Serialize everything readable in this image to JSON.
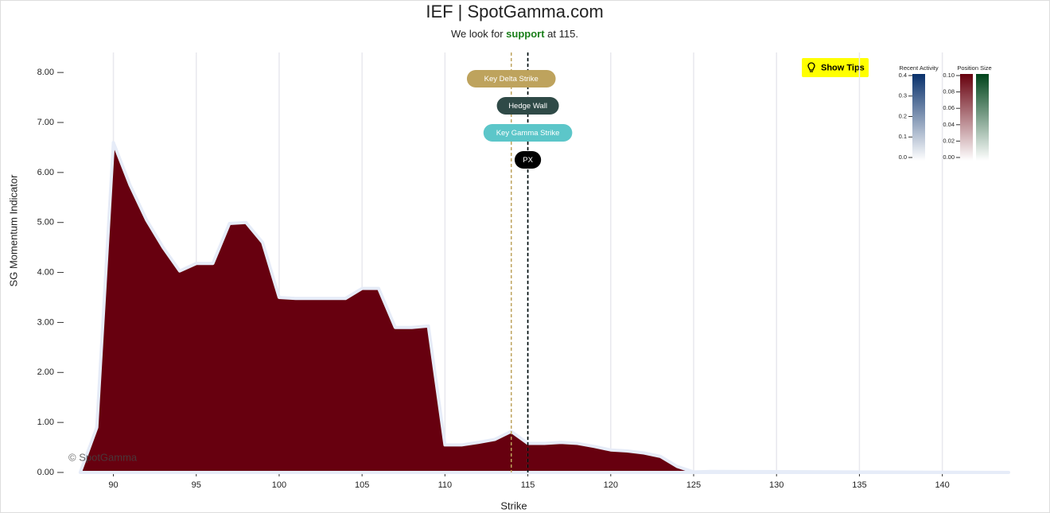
{
  "chart_data": {
    "type": "area",
    "title": "IEF | SpotGamma.com",
    "subtitle": {
      "before": "We look for",
      "emphasis": "support",
      "after": "at 115."
    },
    "watermark": "© SpotGamma",
    "button": "Show Tips",
    "x_label": "Strike",
    "y_label": "SG Momentum Indicator",
    "color": "#67000f",
    "outline": "#e6ecf8",
    "x": [
      88,
      89,
      90,
      91,
      92,
      93,
      94,
      95,
      96,
      97,
      98,
      99,
      100,
      101,
      102,
      103,
      104,
      105,
      106,
      107,
      108,
      109,
      110,
      111,
      112,
      113,
      114,
      115,
      116,
      117,
      118,
      119,
      120,
      121,
      122,
      123,
      124,
      125,
      126,
      144
    ],
    "values": [
      0,
      0.9,
      6.6,
      5.75,
      5.05,
      4.5,
      4.03,
      4.18,
      4.18,
      4.98,
      5.0,
      4.6,
      3.5,
      3.48,
      3.48,
      3.48,
      3.48,
      3.68,
      3.68,
      2.9,
      2.9,
      2.93,
      0.55,
      0.55,
      0.6,
      0.66,
      0.82,
      0.58,
      0.58,
      0.6,
      0.58,
      0.52,
      0.45,
      0.43,
      0.39,
      0.32,
      0.12,
      0.01,
      0.02,
      0
    ],
    "xlim": [
      87,
      144
    ],
    "ylim": [
      0,
      8.4
    ],
    "xticks": [
      90,
      95,
      100,
      105,
      110,
      115,
      120,
      125,
      130,
      135,
      140
    ],
    "yticks": [
      {
        "value": 0,
        "label": "0.00"
      },
      {
        "value": 1,
        "label": "1.00"
      },
      {
        "value": 2,
        "label": "2.00"
      },
      {
        "value": 3,
        "label": "3.00"
      },
      {
        "value": 4,
        "label": "4.00"
      },
      {
        "value": 5,
        "label": "5.00"
      },
      {
        "value": 6,
        "label": "6.00"
      },
      {
        "value": 7,
        "label": "7.00"
      },
      {
        "value": 8,
        "label": "8.00"
      }
    ],
    "grid": true,
    "levels": [
      {
        "label": "Key Delta Strike",
        "value": 114,
        "color": "#bea35d",
        "text_color": "#ffffff"
      },
      {
        "label": "Hedge Wall",
        "value": 115,
        "color": "#2f4a47",
        "text_color": "#ffffff"
      },
      {
        "label": "Key Gamma Strike",
        "value": 115,
        "color": "#5cc6c9",
        "text_color": "#ffffff"
      },
      {
        "label": "PX",
        "value": 115,
        "color": "#000000",
        "text_color": "#ffffff"
      }
    ],
    "color_scales": [
      {
        "title": "Recent Activity",
        "range": [
          0,
          0.4
        ],
        "colors": [
          [
            "#ffffff",
            "#08306b"
          ]
        ],
        "ticks": [
          {
            "value": 0,
            "label": "0.0"
          },
          {
            "value": 0.1,
            "label": "0.1"
          },
          {
            "value": 0.2,
            "label": "0.2"
          },
          {
            "value": 0.3,
            "label": "0.3"
          },
          {
            "value": 0.4,
            "label": "0.4"
          }
        ]
      },
      {
        "title": "Position Size",
        "range": [
          0,
          0.1
        ],
        "colors": [
          [
            "#ffffff",
            "#67000d"
          ],
          [
            "#ffffff",
            "#00441b"
          ]
        ],
        "ticks": [
          {
            "value": 0,
            "label": "0.00"
          },
          {
            "value": 0.02,
            "label": "0.02"
          },
          {
            "value": 0.04,
            "label": "0.04"
          },
          {
            "value": 0.06,
            "label": "0.06"
          },
          {
            "value": 0.08,
            "label": "0.08"
          },
          {
            "value": 0.1,
            "label": "0.10"
          }
        ]
      }
    ]
  }
}
